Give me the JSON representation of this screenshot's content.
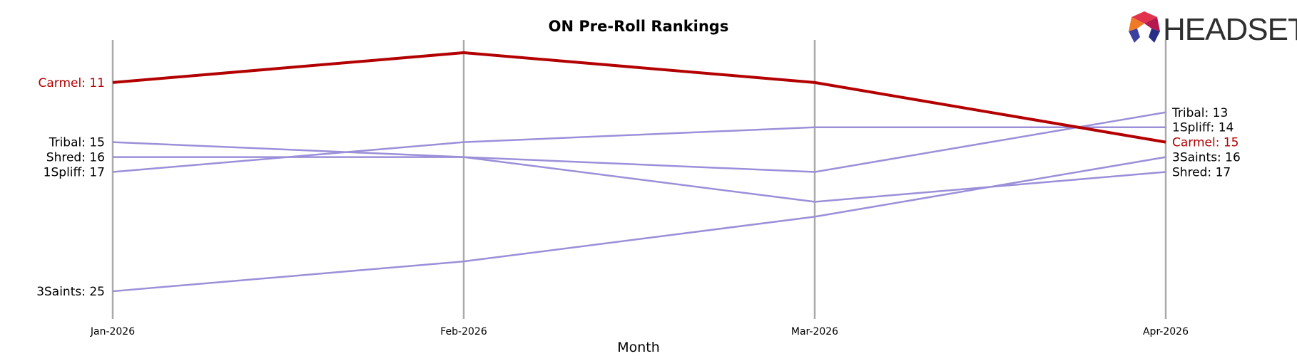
{
  "brand": {
    "logo_text": "HEADSET"
  },
  "colors": {
    "highlight": "#b30000",
    "other": "#9b8fd9",
    "axis_line": "#aaaaaa",
    "text": "#000000"
  },
  "chart_data": {
    "type": "line",
    "title": "ON Pre-Roll Rankings",
    "xlabel": "Month",
    "ylabel": "",
    "x": [
      "Jan-2026",
      "Feb-2026",
      "Mar-2026",
      "Apr-2026"
    ],
    "y_inverted": true,
    "ylim": [
      9,
      26
    ],
    "grid": false,
    "highlight_series": "Carmel",
    "series": [
      {
        "name": "Carmel",
        "values": [
          11,
          9,
          11,
          15
        ]
      },
      {
        "name": "Tribal",
        "values": [
          15,
          16,
          17,
          13
        ]
      },
      {
        "name": "Shred",
        "values": [
          16,
          16,
          19,
          17
        ]
      },
      {
        "name": "1Spliff",
        "values": [
          17,
          15,
          14,
          14
        ]
      },
      {
        "name": "3Saints",
        "values": [
          25,
          23,
          20,
          16
        ]
      }
    ],
    "start_labels": [
      {
        "series": "Carmel",
        "text": "Carmel: 11"
      },
      {
        "series": "Tribal",
        "text": "Tribal: 15"
      },
      {
        "series": "Shred",
        "text": "Shred: 16"
      },
      {
        "series": "1Spliff",
        "text": "1Spliff: 17"
      },
      {
        "series": "3Saints",
        "text": "3Saints: 25"
      }
    ],
    "end_labels": [
      {
        "series": "Tribal",
        "text": "Tribal: 13"
      },
      {
        "series": "1Spliff",
        "text": "1Spliff: 14"
      },
      {
        "series": "Carmel",
        "text": "Carmel: 15"
      },
      {
        "series": "3Saints",
        "text": "3Saints: 16"
      },
      {
        "series": "Shred",
        "text": "Shred: 17"
      }
    ]
  }
}
